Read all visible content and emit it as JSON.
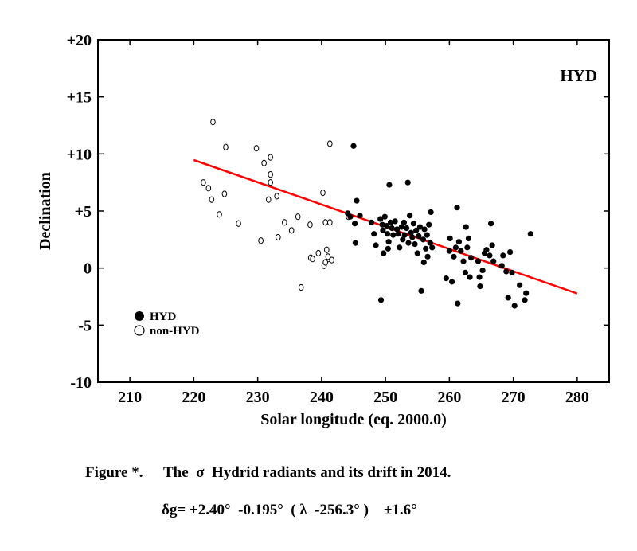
{
  "chart_data": {
    "type": "scatter",
    "title": "",
    "xlabel": "Solar longitude (eq. 2000.0)",
    "ylabel": "Declination",
    "xlim": [
      205,
      285
    ],
    "ylim": [
      -10,
      20
    ],
    "xticks": [
      210,
      220,
      230,
      240,
      250,
      260,
      270,
      280
    ],
    "yticks": [
      -10,
      -5,
      0,
      5,
      10,
      15,
      20
    ],
    "xtick_labels": [
      "210",
      "220",
      "230",
      "240",
      "250",
      "260",
      "270",
      "280"
    ],
    "ytick_labels": [
      "-10",
      "-5",
      "0",
      "+5",
      "+10",
      "+15",
      "+20"
    ],
    "series_label": "HYD",
    "legend": {
      "position": "bottom-left",
      "entries": [
        {
          "name": "HYD",
          "marker": "filled-circle"
        },
        {
          "name": "non-HYD",
          "marker": "open-circle"
        }
      ]
    },
    "series": [
      {
        "name": "non-HYD",
        "marker": "open",
        "points": [
          [
            221.5,
            7.5
          ],
          [
            222.3,
            7.0
          ],
          [
            222.8,
            6.0
          ],
          [
            223.0,
            12.8
          ],
          [
            224.0,
            4.7
          ],
          [
            224.8,
            6.5
          ],
          [
            225.0,
            10.6
          ],
          [
            227.0,
            3.9
          ],
          [
            229.8,
            10.5
          ],
          [
            230.5,
            2.4
          ],
          [
            231.0,
            9.2
          ],
          [
            231.7,
            6.0
          ],
          [
            232.0,
            7.5
          ],
          [
            232.0,
            9.7
          ],
          [
            232.0,
            8.2
          ],
          [
            233.0,
            6.3
          ],
          [
            233.2,
            2.7
          ],
          [
            234.2,
            4.0
          ],
          [
            235.3,
            3.3
          ],
          [
            236.3,
            4.5
          ],
          [
            236.8,
            -1.7
          ],
          [
            238.2,
            3.8
          ],
          [
            238.3,
            0.9
          ],
          [
            238.6,
            0.8
          ],
          [
            239.5,
            1.3
          ],
          [
            240.2,
            6.6
          ],
          [
            240.4,
            0.2
          ],
          [
            240.6,
            4.0
          ],
          [
            240.8,
            1.6
          ],
          [
            241.1,
            0.8
          ],
          [
            241.3,
            4.0
          ],
          [
            241.3,
            10.9
          ],
          [
            241.0,
            1.0
          ],
          [
            241.6,
            0.7
          ],
          [
            240.6,
            0.5
          ],
          [
            244.2,
            4.5
          ]
        ]
      },
      {
        "name": "HYD",
        "marker": "filled",
        "points": [
          [
            244.1,
            4.8
          ],
          [
            244.5,
            4.5
          ],
          [
            245.0,
            10.7
          ],
          [
            245.2,
            3.9
          ],
          [
            245.3,
            2.2
          ],
          [
            245.5,
            5.9
          ],
          [
            246.0,
            4.6
          ],
          [
            247.8,
            4.0
          ],
          [
            248.2,
            3.0
          ],
          [
            248.5,
            2.0
          ],
          [
            249.2,
            4.3
          ],
          [
            249.5,
            3.8
          ],
          [
            249.6,
            3.3
          ],
          [
            249.3,
            -2.8
          ],
          [
            249.7,
            1.3
          ],
          [
            249.9,
            4.5
          ],
          [
            250.2,
            3.7
          ],
          [
            250.3,
            3.0
          ],
          [
            250.4,
            1.7
          ],
          [
            250.5,
            2.3
          ],
          [
            250.6,
            7.3
          ],
          [
            250.8,
            4.0
          ],
          [
            251.0,
            3.5
          ],
          [
            251.2,
            2.9
          ],
          [
            251.5,
            4.1
          ],
          [
            251.8,
            3.4
          ],
          [
            252.0,
            3.0
          ],
          [
            252.2,
            1.8
          ],
          [
            252.5,
            3.6
          ],
          [
            252.7,
            2.5
          ],
          [
            252.9,
            4.0
          ],
          [
            253.0,
            2.9
          ],
          [
            253.3,
            3.5
          ],
          [
            253.5,
            7.5
          ],
          [
            253.6,
            2.2
          ],
          [
            253.8,
            4.6
          ],
          [
            254.0,
            3.1
          ],
          [
            254.2,
            2.7
          ],
          [
            254.4,
            3.9
          ],
          [
            254.6,
            2.1
          ],
          [
            254.8,
            3.3
          ],
          [
            255.0,
            1.3
          ],
          [
            255.2,
            2.8
          ],
          [
            255.4,
            3.6
          ],
          [
            255.6,
            -2.0
          ],
          [
            255.9,
            2.5
          ],
          [
            256.0,
            0.5
          ],
          [
            256.1,
            3.4
          ],
          [
            256.3,
            1.7
          ],
          [
            256.5,
            2.9
          ],
          [
            256.6,
            1.0
          ],
          [
            256.8,
            3.8
          ],
          [
            257.0,
            2.2
          ],
          [
            257.1,
            4.9
          ],
          [
            257.3,
            1.8
          ],
          [
            259.5,
            -0.9
          ],
          [
            260.0,
            1.5
          ],
          [
            260.1,
            2.6
          ],
          [
            260.4,
            -1.2
          ],
          [
            260.7,
            1.0
          ],
          [
            261.0,
            1.8
          ],
          [
            261.2,
            5.3
          ],
          [
            261.3,
            -3.1
          ],
          [
            261.5,
            2.3
          ],
          [
            261.8,
            1.5
          ],
          [
            262.2,
            0.6
          ],
          [
            262.5,
            -0.4
          ],
          [
            262.6,
            3.6
          ],
          [
            262.8,
            1.8
          ],
          [
            263.0,
            2.6
          ],
          [
            263.2,
            -0.8
          ],
          [
            263.4,
            0.9
          ],
          [
            264.5,
            0.6
          ],
          [
            264.7,
            -0.8
          ],
          [
            264.8,
            -1.6
          ],
          [
            265.2,
            -0.2
          ],
          [
            265.5,
            1.3
          ],
          [
            265.8,
            1.6
          ],
          [
            266.3,
            1.1
          ],
          [
            266.5,
            3.9
          ],
          [
            266.7,
            2.0
          ],
          [
            266.9,
            0.6
          ],
          [
            268.2,
            0.2
          ],
          [
            268.4,
            1.1
          ],
          [
            268.9,
            -0.3
          ],
          [
            269.2,
            -2.6
          ],
          [
            269.5,
            1.4
          ],
          [
            269.8,
            -0.4
          ],
          [
            270.2,
            -3.3
          ],
          [
            271.0,
            -1.5
          ],
          [
            271.8,
            -2.8
          ],
          [
            272.0,
            -2.2
          ],
          [
            272.7,
            3.0
          ]
        ]
      }
    ],
    "fit_line": {
      "name": "drift",
      "color": "#ff0000",
      "from": [
        220,
        9.47
      ],
      "to": [
        280,
        -2.23
      ]
    }
  },
  "caption": {
    "line1_label": "Figure *.",
    "line1_text": "The  σ  Hydrid radiants and its drift in 2014.",
    "line2_text": "δg= +2.40°  -0.195°  ( λ  -256.3° )    ±1.6°"
  }
}
